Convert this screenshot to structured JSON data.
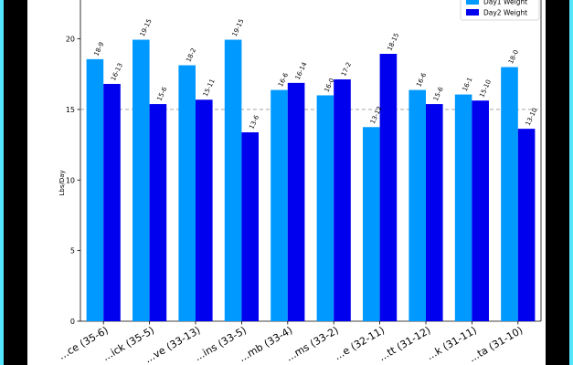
{
  "chart_data": {
    "type": "bar",
    "categories": [
      "...ce (35-6)",
      "...ick (35-5)",
      "...ve (33-13)",
      "...ins (33-5)",
      "...mb (33-4)",
      "...ms (33-2)",
      "...e (32-11)",
      "...tt (31-12)",
      "...k (31-11)",
      "...ta (31-10)"
    ],
    "series": [
      {
        "name": "Day1 Weight",
        "color": "#0099ff",
        "values": [
          18.56,
          19.94,
          18.13,
          19.94,
          16.38,
          16.0,
          13.75,
          16.38,
          16.06,
          18.0
        ],
        "labels": [
          "18-9",
          "19-15",
          "18-2",
          "19-15",
          "16-6",
          "16-0",
          "13-12",
          "16-6",
          "16-1",
          "18-0"
        ]
      },
      {
        "name": "Day2 Weight",
        "color": "#0000ee",
        "values": [
          16.81,
          15.38,
          15.69,
          13.38,
          16.88,
          17.13,
          18.94,
          15.38,
          15.63,
          13.63
        ],
        "labels": [
          "16-13",
          "15-6",
          "15-11",
          "13-6",
          "16-14",
          "17-2",
          "18-15",
          "15-6",
          "15-10",
          "13-10"
        ]
      }
    ],
    "ylabel": "Lbs/Day",
    "yticks": [
      0,
      5,
      10,
      15,
      20
    ],
    "ylim": [
      0,
      23.4
    ],
    "reference_line": 15,
    "legend_position": "top-right",
    "grid": false
  }
}
